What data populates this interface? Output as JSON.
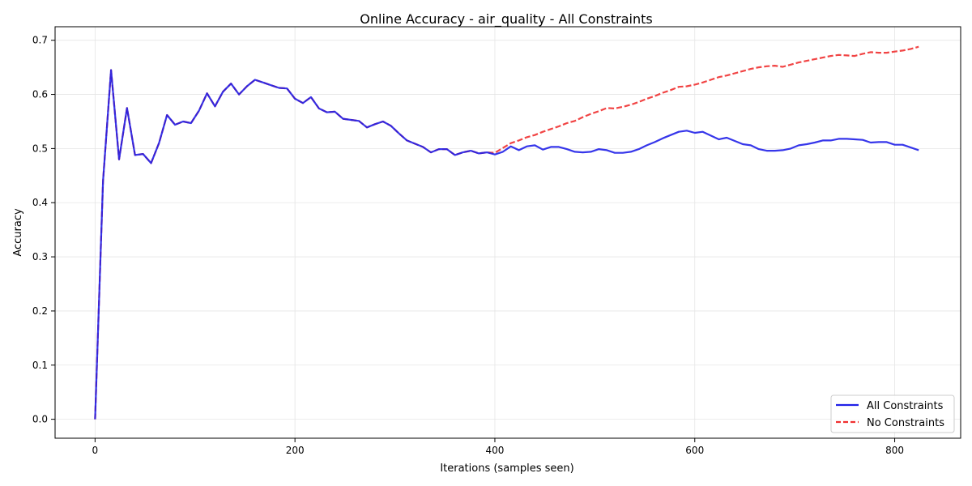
{
  "chart_data": {
    "type": "line",
    "title": "Online Accuracy - air_quality - All Constraints",
    "xlabel": "Iterations (samples seen)",
    "ylabel": "Accuracy",
    "xlim": [
      -40,
      866
    ],
    "ylim": [
      -0.035,
      0.725
    ],
    "xticks": [
      0,
      200,
      400,
      600,
      800
    ],
    "yticks": [
      0.0,
      0.1,
      0.2,
      0.3,
      0.4,
      0.5,
      0.6,
      0.7
    ],
    "xtick_labels": [
      "0",
      "200",
      "400",
      "600",
      "800"
    ],
    "ytick_labels": [
      "0.0",
      "0.1",
      "0.2",
      "0.3",
      "0.4",
      "0.5",
      "0.6",
      "0.7"
    ],
    "grid": true,
    "legend_position": "bottom-right",
    "x": [
      0,
      8,
      16,
      24,
      32,
      40,
      48,
      56,
      64,
      72,
      80,
      88,
      96,
      104,
      112,
      120,
      128,
      136,
      144,
      152,
      160,
      168,
      176,
      184,
      192,
      200,
      208,
      216,
      224,
      232,
      240,
      248,
      256,
      264,
      272,
      280,
      288,
      296,
      304,
      312,
      320,
      328,
      336,
      344,
      352,
      360,
      368,
      376,
      384,
      392,
      400,
      408,
      416,
      424,
      432,
      440,
      448,
      456,
      464,
      472,
      480,
      488,
      496,
      504,
      512,
      520,
      528,
      536,
      544,
      552,
      560,
      568,
      576,
      584,
      592,
      600,
      608,
      616,
      624,
      632,
      640,
      648,
      656,
      664,
      672,
      680,
      688,
      696,
      704,
      712,
      720,
      728,
      736,
      744,
      752,
      760,
      768,
      776,
      784,
      792,
      800,
      808,
      816,
      824
    ],
    "series": [
      {
        "name": "All Constraints",
        "color": "#2020e8",
        "style": "solid",
        "values": [
          0.0,
          0.44,
          0.645,
          0.48,
          0.575,
          0.488,
          0.49,
          0.473,
          0.51,
          0.562,
          0.544,
          0.55,
          0.547,
          0.57,
          0.602,
          0.578,
          0.605,
          0.62,
          0.6,
          0.615,
          0.627,
          0.622,
          0.617,
          0.612,
          0.611,
          0.592,
          0.584,
          0.595,
          0.574,
          0.567,
          0.568,
          0.555,
          0.553,
          0.551,
          0.539,
          0.545,
          0.55,
          0.542,
          0.528,
          0.515,
          0.509,
          0.503,
          0.493,
          0.499,
          0.499,
          0.488,
          0.493,
          0.496,
          0.491,
          0.493,
          0.489,
          0.494,
          0.504,
          0.497,
          0.504,
          0.506,
          0.498,
          0.503,
          0.503,
          0.499,
          0.494,
          0.493,
          0.494,
          0.499,
          0.497,
          0.492,
          0.492,
          0.494,
          0.499,
          0.506,
          0.512,
          0.519,
          0.525,
          0.531,
          0.533,
          0.529,
          0.531,
          0.524,
          0.517,
          0.52,
          0.514,
          0.508,
          0.506,
          0.499,
          0.496,
          0.496,
          0.497,
          0.5,
          0.506,
          0.508,
          0.511,
          0.515,
          0.515,
          0.518,
          0.518,
          0.517,
          0.516,
          0.511,
          0.512,
          0.512,
          0.507,
          0.507,
          0.502,
          0.497
        ]
      },
      {
        "name": "No Constraints",
        "color": "#f03030",
        "style": "dashed",
        "values": [
          0.0,
          0.44,
          0.645,
          0.48,
          0.575,
          0.488,
          0.49,
          0.473,
          0.51,
          0.562,
          0.544,
          0.55,
          0.547,
          0.57,
          0.602,
          0.578,
          0.605,
          0.62,
          0.6,
          0.615,
          0.627,
          0.622,
          0.617,
          0.612,
          0.611,
          0.592,
          0.584,
          0.595,
          0.574,
          0.567,
          0.568,
          0.555,
          0.553,
          0.551,
          0.539,
          0.545,
          0.55,
          0.542,
          0.528,
          0.515,
          0.509,
          0.503,
          0.493,
          0.499,
          0.499,
          0.488,
          0.493,
          0.496,
          0.491,
          0.493,
          0.492,
          0.501,
          0.51,
          0.515,
          0.521,
          0.525,
          0.531,
          0.536,
          0.541,
          0.547,
          0.551,
          0.558,
          0.564,
          0.569,
          0.575,
          0.574,
          0.577,
          0.581,
          0.586,
          0.592,
          0.597,
          0.603,
          0.608,
          0.614,
          0.615,
          0.618,
          0.622,
          0.627,
          0.632,
          0.635,
          0.639,
          0.643,
          0.647,
          0.65,
          0.652,
          0.653,
          0.651,
          0.655,
          0.659,
          0.662,
          0.665,
          0.668,
          0.671,
          0.673,
          0.672,
          0.671,
          0.675,
          0.678,
          0.677,
          0.677,
          0.679,
          0.681,
          0.684,
          0.688
        ]
      }
    ]
  }
}
